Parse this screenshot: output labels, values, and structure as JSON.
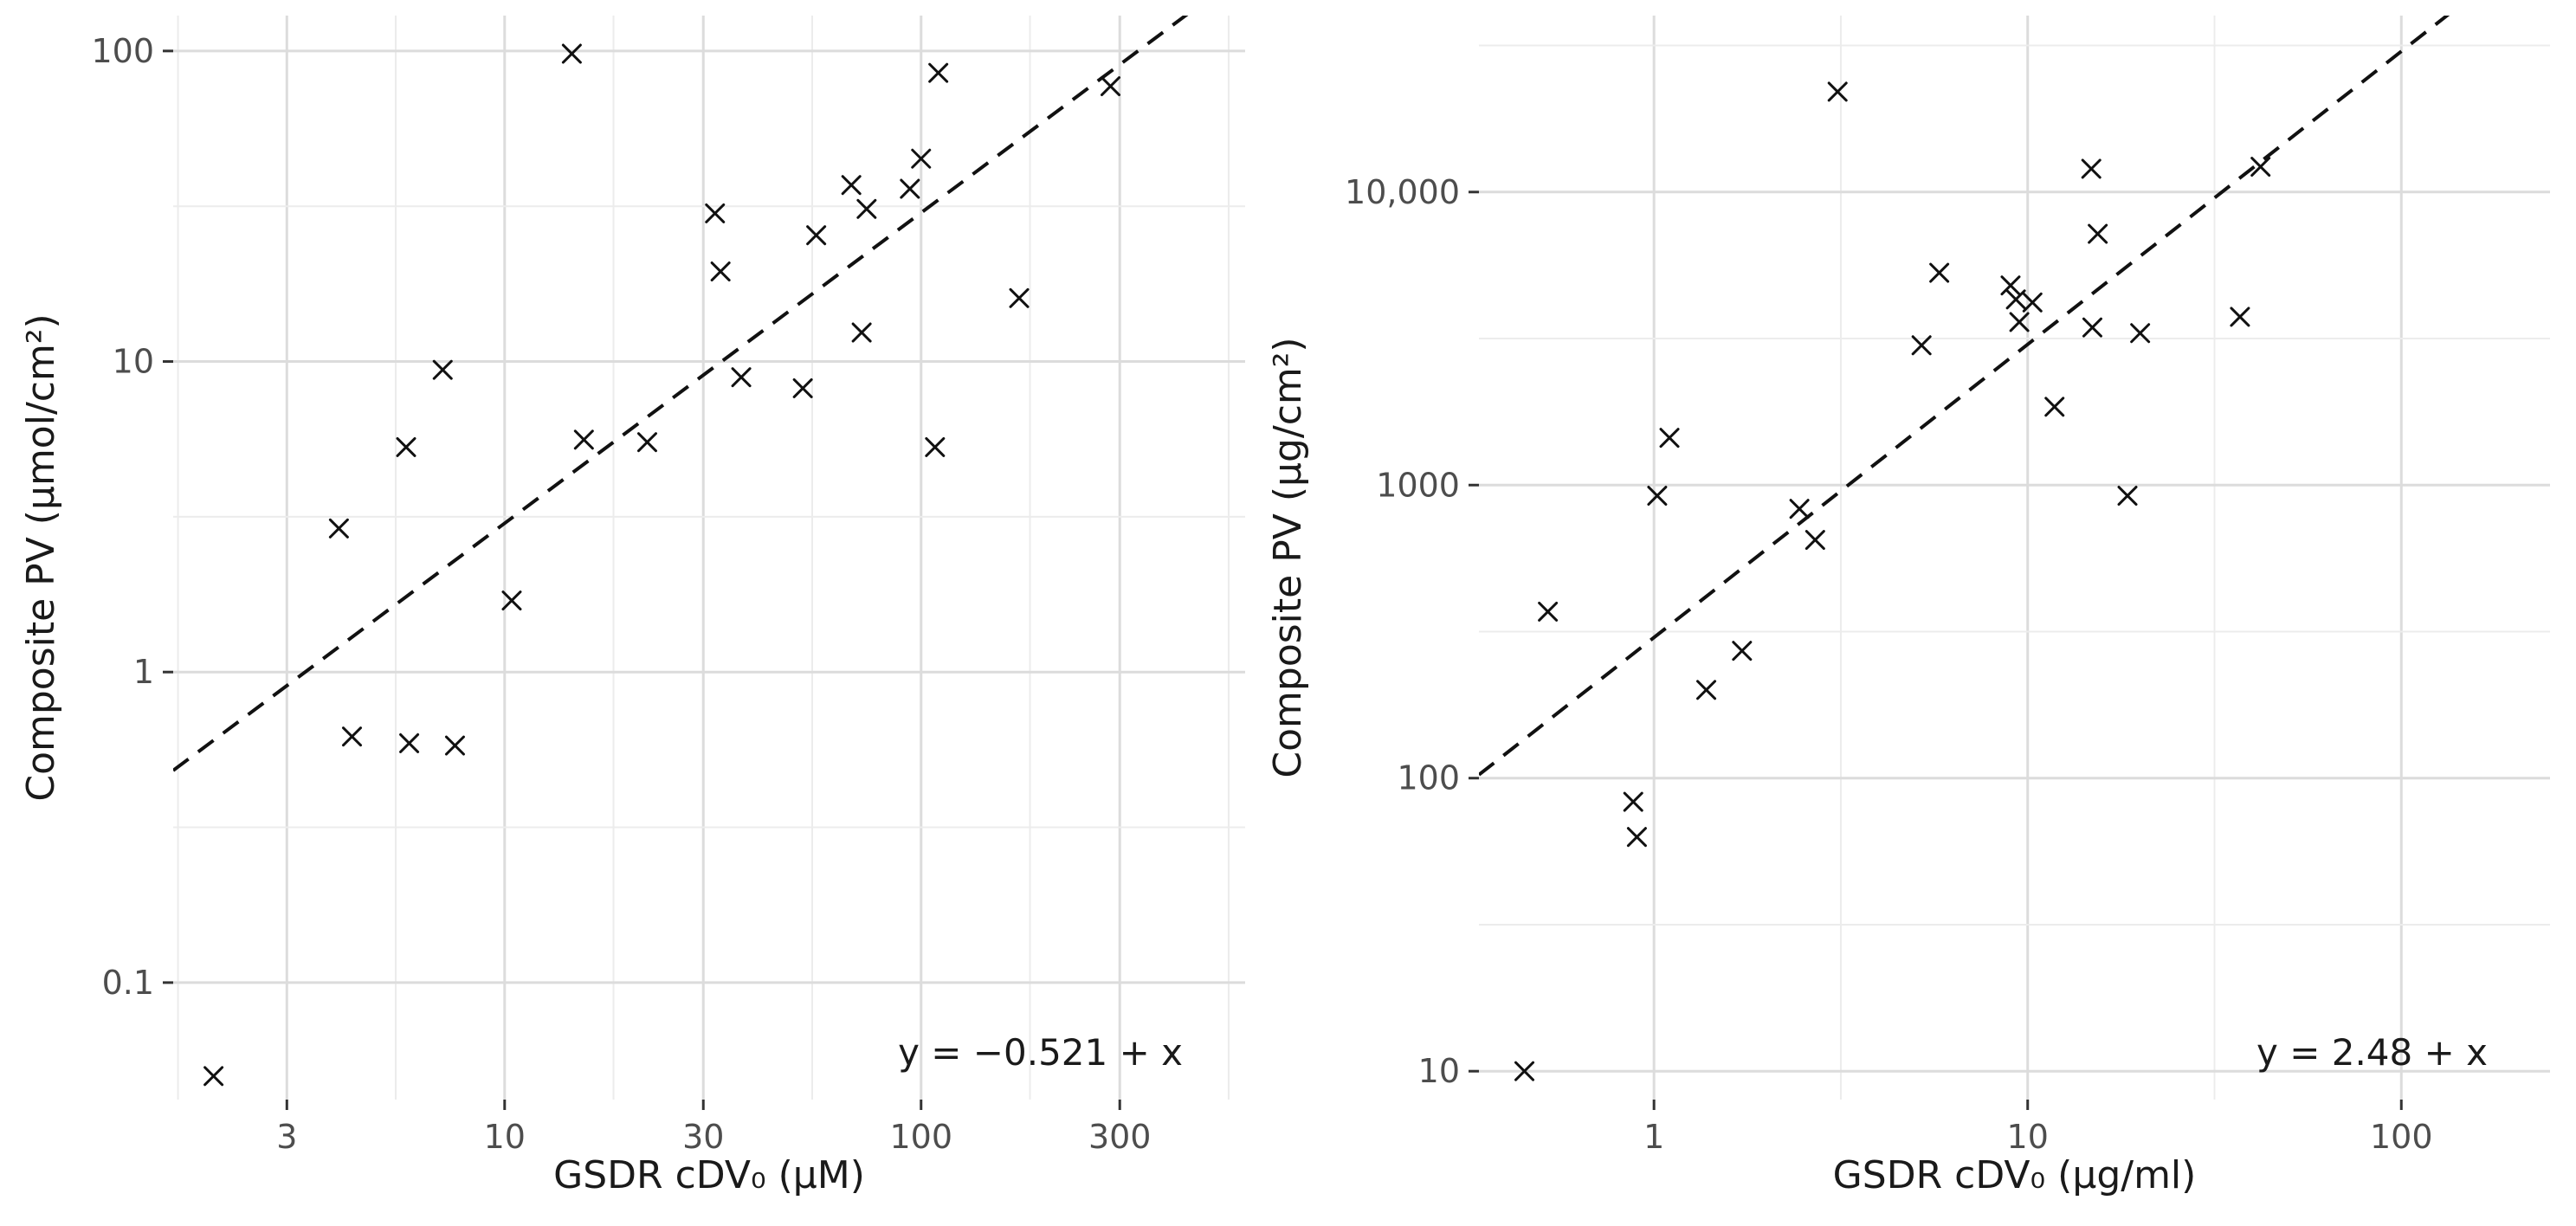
{
  "chart_data": [
    {
      "type": "scatter",
      "x_scale": "log",
      "y_scale": "log",
      "xlabel": "GSDR cDV₀ (μM)",
      "ylabel": "Composite PV (μmol/cm²)",
      "xlim": [
        1.6,
        600
      ],
      "ylim": [
        0.042,
        130
      ],
      "x_ticks": [
        3,
        10,
        30,
        100,
        300
      ],
      "x_tick_labels": [
        "3",
        "10",
        "30",
        "100",
        "300"
      ],
      "y_ticks": [
        0.1,
        1,
        10,
        100
      ],
      "y_tick_labels": [
        "0.1",
        "1",
        "10",
        "100"
      ],
      "grid": true,
      "annotation": "y = −0.521 + x",
      "fit_line": {
        "intercept_log10": -0.521,
        "slope": 1
      },
      "points": [
        {
          "x": 2.0,
          "y": 0.05
        },
        {
          "x": 4.0,
          "y": 2.9
        },
        {
          "x": 4.3,
          "y": 0.62
        },
        {
          "x": 5.8,
          "y": 5.3
        },
        {
          "x": 5.9,
          "y": 0.59
        },
        {
          "x": 7.1,
          "y": 9.4
        },
        {
          "x": 7.6,
          "y": 0.58
        },
        {
          "x": 10.4,
          "y": 1.7
        },
        {
          "x": 14.5,
          "y": 98
        },
        {
          "x": 15.5,
          "y": 5.6
        },
        {
          "x": 22,
          "y": 5.5
        },
        {
          "x": 32,
          "y": 30
        },
        {
          "x": 33,
          "y": 19.5
        },
        {
          "x": 37,
          "y": 8.9
        },
        {
          "x": 52,
          "y": 8.2
        },
        {
          "x": 56,
          "y": 25.5
        },
        {
          "x": 68,
          "y": 37
        },
        {
          "x": 72,
          "y": 12.4
        },
        {
          "x": 74,
          "y": 31
        },
        {
          "x": 94,
          "y": 36
        },
        {
          "x": 100,
          "y": 45
        },
        {
          "x": 108,
          "y": 5.3
        },
        {
          "x": 110,
          "y": 85
        },
        {
          "x": 172,
          "y": 16
        },
        {
          "x": 285,
          "y": 77
        }
      ]
    },
    {
      "type": "scatter",
      "x_scale": "log",
      "y_scale": "log",
      "xlabel": "GSDR cDV₀ (μg/ml)",
      "ylabel": "Composite PV (μg/cm²)",
      "xlim": [
        0.34,
        250
      ],
      "ylim": [
        8,
        40000
      ],
      "x_ticks": [
        1,
        10,
        100
      ],
      "x_tick_labels": [
        "1",
        "10",
        "100"
      ],
      "y_ticks": [
        10,
        100,
        1000,
        10000
      ],
      "y_tick_labels": [
        "10",
        "100",
        "1000",
        "10,000"
      ],
      "grid": true,
      "annotation": "y = 2.48 + x",
      "fit_line": {
        "intercept_log10": 2.48,
        "slope": 1
      },
      "points": [
        {
          "x": 0.45,
          "y": 10
        },
        {
          "x": 0.52,
          "y": 370
        },
        {
          "x": 0.88,
          "y": 83
        },
        {
          "x": 0.9,
          "y": 63
        },
        {
          "x": 1.02,
          "y": 920
        },
        {
          "x": 1.1,
          "y": 1450
        },
        {
          "x": 1.38,
          "y": 200
        },
        {
          "x": 1.72,
          "y": 272
        },
        {
          "x": 2.45,
          "y": 830
        },
        {
          "x": 2.7,
          "y": 650
        },
        {
          "x": 3.1,
          "y": 22000
        },
        {
          "x": 5.2,
          "y": 3000
        },
        {
          "x": 5.8,
          "y": 5300
        },
        {
          "x": 9.0,
          "y": 4800
        },
        {
          "x": 9.3,
          "y": 4300
        },
        {
          "x": 9.5,
          "y": 3600
        },
        {
          "x": 10.3,
          "y": 4200
        },
        {
          "x": 11.8,
          "y": 1850
        },
        {
          "x": 14.8,
          "y": 12000
        },
        {
          "x": 14.9,
          "y": 3450
        },
        {
          "x": 15.4,
          "y": 7200
        },
        {
          "x": 18.5,
          "y": 920
        },
        {
          "x": 20,
          "y": 3300
        },
        {
          "x": 37,
          "y": 3750
        },
        {
          "x": 42,
          "y": 12200
        }
      ]
    }
  ]
}
